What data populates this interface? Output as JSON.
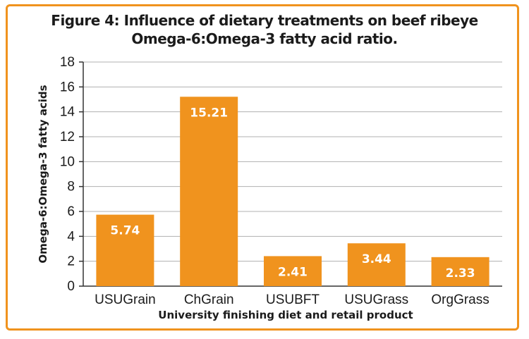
{
  "chart_data": {
    "type": "bar",
    "title_line1": "Figure 4: Influence of dietary treatments on beef ribeye",
    "title_line2": "Omega-6:Omega-3 fatty acid ratio.",
    "xlabel": "University finishing diet and retail product",
    "ylabel": "Omega-6:Omega-3 fatty acids",
    "categories": [
      "USUGrain",
      "ChGrain",
      "USUBFT",
      "USUGrass",
      "OrgGrass"
    ],
    "values": [
      5.74,
      15.21,
      2.41,
      3.44,
      2.33
    ],
    "value_labels": [
      "5.74",
      "15.21",
      "2.41",
      "3.44",
      "2.33"
    ],
    "ylim": [
      0,
      18
    ],
    "yticks": [
      0,
      2,
      4,
      6,
      8,
      10,
      12,
      14,
      16,
      18
    ],
    "grid": true,
    "legend": "none",
    "bar_color": "#f0931e",
    "frame_color": "#f0931e"
  }
}
